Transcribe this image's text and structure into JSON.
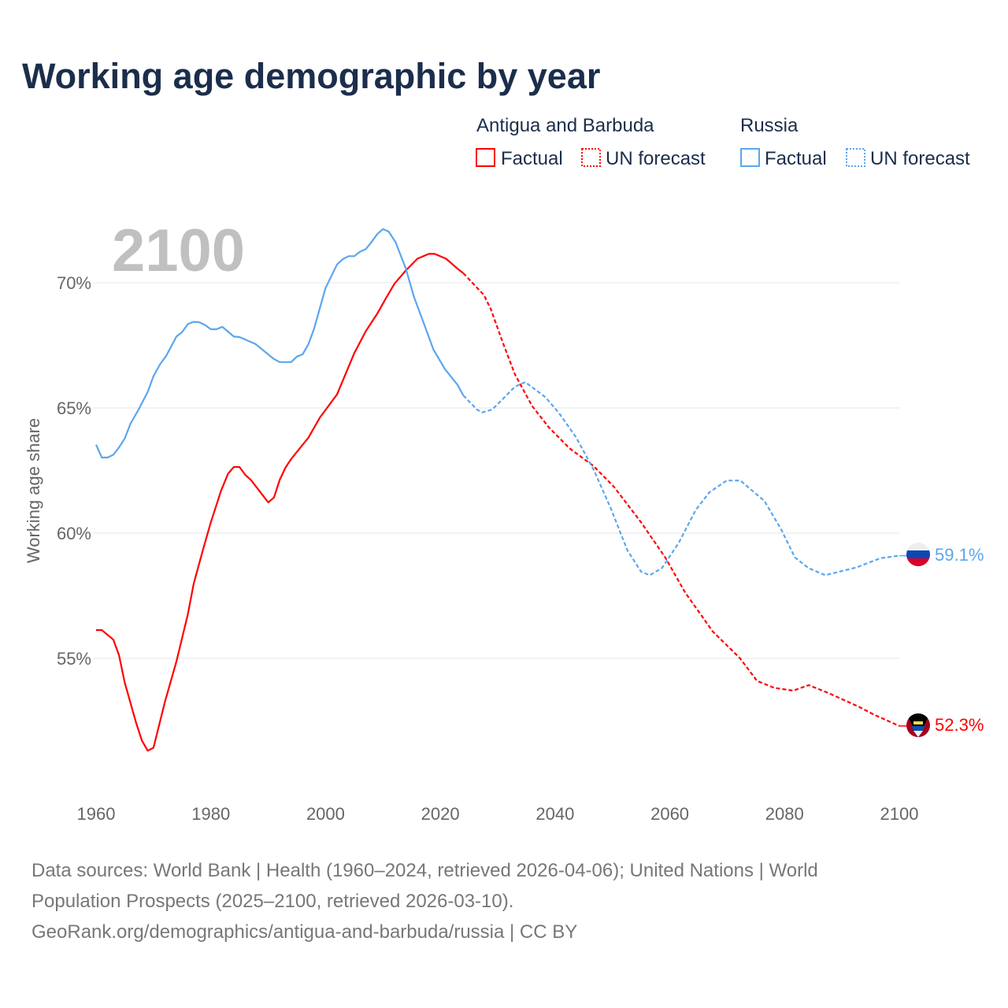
{
  "title": "Working age demographic by year",
  "legend": {
    "groups": [
      {
        "name": "Antigua and Barbuda",
        "factual": "Factual",
        "forecast": "UN forecast",
        "color": "#ff0000"
      },
      {
        "name": "Russia",
        "factual": "Factual",
        "forecast": "UN forecast",
        "color": "#5ba6ee"
      }
    ]
  },
  "year_watermark": "2100",
  "footer": {
    "line1": "Data sources: World Bank | Health (1960–2024, retrieved 2026-04-06); United Nations | World",
    "line2": "Population Prospects (2025–2100, retrieved 2026-03-10).",
    "line3": "GeoRank.org/demographics/antigua-and-barbuda/russia | CC BY"
  },
  "chart_data": {
    "type": "line",
    "title": "Working age demographic by year",
    "xlabel": "",
    "ylabel": "Working age share",
    "xlim": [
      1960,
      2100
    ],
    "ylim": [
      50,
      72.5
    ],
    "x_ticks": [
      "1960",
      "1980",
      "2000",
      "2020",
      "2040",
      "2060",
      "2080",
      "2100"
    ],
    "x_tick_values": [
      1960,
      1980,
      2000,
      2020,
      2040,
      2060,
      2080,
      2100
    ],
    "y_ticks": [
      "55%",
      "60%",
      "65%",
      "70%"
    ],
    "y_tick_values": [
      55,
      60,
      65,
      70
    ],
    "grid": true,
    "legend_placement": "top-right",
    "factual_until": 2024,
    "series": [
      {
        "name": "Antigua and Barbuda",
        "color": "#ff0000",
        "end_label": "52.3%",
        "points": [
          [
            1960,
            56.13
          ],
          [
            1961,
            56.13
          ],
          [
            1963,
            55.75
          ],
          [
            1964,
            55.13
          ],
          [
            1965,
            54.03
          ],
          [
            1967,
            52.41
          ],
          [
            1968,
            51.71
          ],
          [
            1969,
            51.31
          ],
          [
            1970,
            51.43
          ],
          [
            1972,
            53.26
          ],
          [
            1974,
            54.87
          ],
          [
            1976,
            56.77
          ],
          [
            1977,
            57.97
          ],
          [
            1978.6,
            59.31
          ],
          [
            1980,
            60.43
          ],
          [
            1981.8,
            61.7
          ],
          [
            1983,
            62.37
          ],
          [
            1984,
            62.64
          ],
          [
            1985,
            62.64
          ],
          [
            1986,
            62.33
          ],
          [
            1987,
            62.12
          ],
          [
            1990,
            61.23
          ],
          [
            1991,
            61.42
          ],
          [
            1992,
            62.12
          ],
          [
            1993,
            62.61
          ],
          [
            1994,
            62.96
          ],
          [
            1997,
            63.81
          ],
          [
            1999,
            64.61
          ],
          [
            2002,
            65.54
          ],
          [
            2005,
            67.19
          ],
          [
            2007,
            68.06
          ],
          [
            2009,
            68.76
          ],
          [
            2010.5,
            69.37
          ],
          [
            2012,
            69.96
          ],
          [
            2014,
            70.49
          ],
          [
            2016,
            70.96
          ],
          [
            2018,
            71.15
          ],
          [
            2019,
            71.15
          ],
          [
            2021,
            70.96
          ],
          [
            2023,
            70.56
          ],
          [
            2024,
            70.38
          ],
          [
            2027.6,
            69.51
          ],
          [
            2028.8,
            68.94
          ],
          [
            2030.9,
            67.6
          ],
          [
            2033,
            66.34
          ],
          [
            2036,
            65.08
          ],
          [
            2038.9,
            64.23
          ],
          [
            2042.5,
            63.39
          ],
          [
            2046.7,
            62.68
          ],
          [
            2050.3,
            61.84
          ],
          [
            2055,
            60.43
          ],
          [
            2059.2,
            59.03
          ],
          [
            2062.7,
            57.62
          ],
          [
            2067.5,
            56.07
          ],
          [
            2072.2,
            55.01
          ],
          [
            2075.2,
            54.1
          ],
          [
            2078.2,
            53.82
          ],
          [
            2081.5,
            53.71
          ],
          [
            2084.2,
            53.93
          ],
          [
            2087.7,
            53.61
          ],
          [
            2093.1,
            53.05
          ],
          [
            2095.5,
            52.76
          ],
          [
            2099.6,
            52.34
          ],
          [
            2100,
            52.3
          ]
        ]
      },
      {
        "name": "Russia",
        "color": "#5ba6ee",
        "end_label": "59.1%",
        "points": [
          [
            1960,
            63.53
          ],
          [
            1961,
            63.02
          ],
          [
            1962,
            63.02
          ],
          [
            1963,
            63.13
          ],
          [
            1964,
            63.42
          ],
          [
            1965,
            63.78
          ],
          [
            1966,
            64.37
          ],
          [
            1967.4,
            64.93
          ],
          [
            1969,
            65.64
          ],
          [
            1970,
            66.27
          ],
          [
            1971.2,
            66.76
          ],
          [
            1972.2,
            67.07
          ],
          [
            1974,
            67.85
          ],
          [
            1975,
            68.03
          ],
          [
            1976,
            68.35
          ],
          [
            1977,
            68.44
          ],
          [
            1978,
            68.42
          ],
          [
            1979,
            68.31
          ],
          [
            1980,
            68.14
          ],
          [
            1981,
            68.14
          ],
          [
            1982,
            68.24
          ],
          [
            1984,
            67.85
          ],
          [
            1985,
            67.83
          ],
          [
            1987.8,
            67.55
          ],
          [
            1990.9,
            66.97
          ],
          [
            1992,
            66.83
          ],
          [
            1994,
            66.83
          ],
          [
            1995,
            67.05
          ],
          [
            1996,
            67.14
          ],
          [
            1997,
            67.54
          ],
          [
            1998,
            68.17
          ],
          [
            2000,
            69.79
          ],
          [
            2002,
            70.73
          ],
          [
            2003,
            70.94
          ],
          [
            2004,
            71.06
          ],
          [
            2005,
            71.06
          ],
          [
            2006,
            71.24
          ],
          [
            2007,
            71.34
          ],
          [
            2008,
            71.62
          ],
          [
            2009,
            71.94
          ],
          [
            2010,
            72.14
          ],
          [
            2011,
            72.04
          ],
          [
            2012.2,
            71.62
          ],
          [
            2014,
            70.56
          ],
          [
            2015.4,
            69.44
          ],
          [
            2017,
            68.45
          ],
          [
            2018.8,
            67.33
          ],
          [
            2020.8,
            66.55
          ],
          [
            2023,
            65.92
          ],
          [
            2024,
            65.5
          ],
          [
            2026.4,
            64.93
          ],
          [
            2027.3,
            64.82
          ],
          [
            2029,
            64.93
          ],
          [
            2030.6,
            65.29
          ],
          [
            2033,
            65.85
          ],
          [
            2034.8,
            66.03
          ],
          [
            2038.3,
            65.43
          ],
          [
            2040.7,
            64.79
          ],
          [
            2043.7,
            63.81
          ],
          [
            2046.7,
            62.54
          ],
          [
            2049.7,
            61.0
          ],
          [
            2052.6,
            59.31
          ],
          [
            2055,
            58.46
          ],
          [
            2056.5,
            58.32
          ],
          [
            2058.6,
            58.6
          ],
          [
            2061.5,
            59.59
          ],
          [
            2064.5,
            60.92
          ],
          [
            2066.9,
            61.63
          ],
          [
            2069.9,
            62.1
          ],
          [
            2072.3,
            62.1
          ],
          [
            2076.5,
            61.28
          ],
          [
            2079.4,
            60.15
          ],
          [
            2081.8,
            59.03
          ],
          [
            2084.2,
            58.6
          ],
          [
            2087.1,
            58.32
          ],
          [
            2089.5,
            58.46
          ],
          [
            2092.5,
            58.63
          ],
          [
            2096.7,
            59.0
          ],
          [
            2100,
            59.1
          ]
        ]
      }
    ]
  }
}
